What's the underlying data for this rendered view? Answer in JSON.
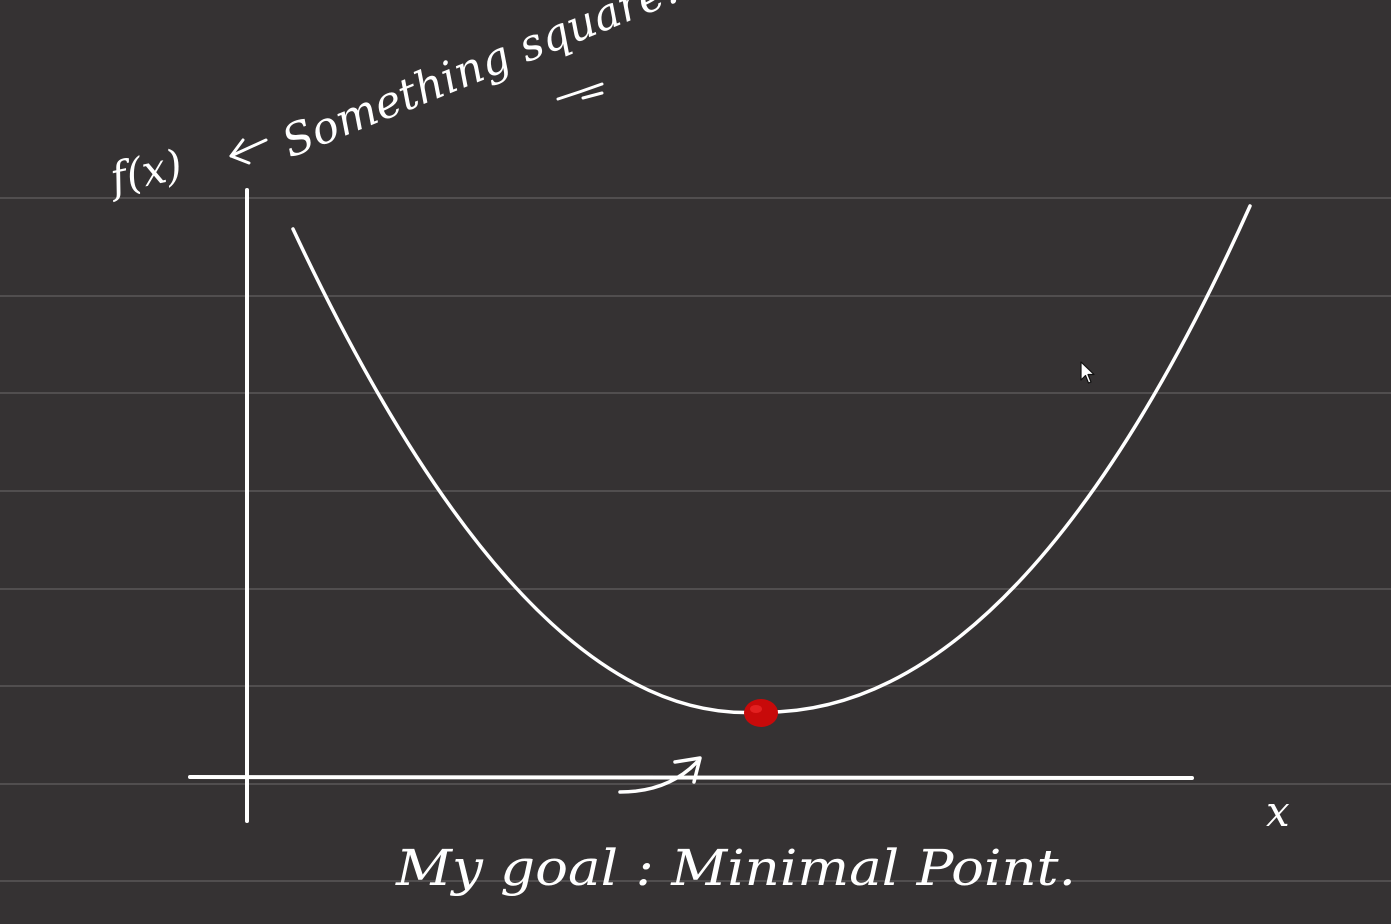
{
  "notes": {
    "function_label": "f(x)",
    "function_annotation": "Something square.",
    "axis_x_label": "x",
    "goal_text": "My goal : Minimal Point."
  },
  "colors": {
    "board_background": "#353233",
    "ruled_lines": "#5b5859",
    "ink": "#ffffff",
    "minimum_marker": "#c80a0a"
  },
  "icons": {
    "cursor": "arrow-pointer-icon"
  }
}
